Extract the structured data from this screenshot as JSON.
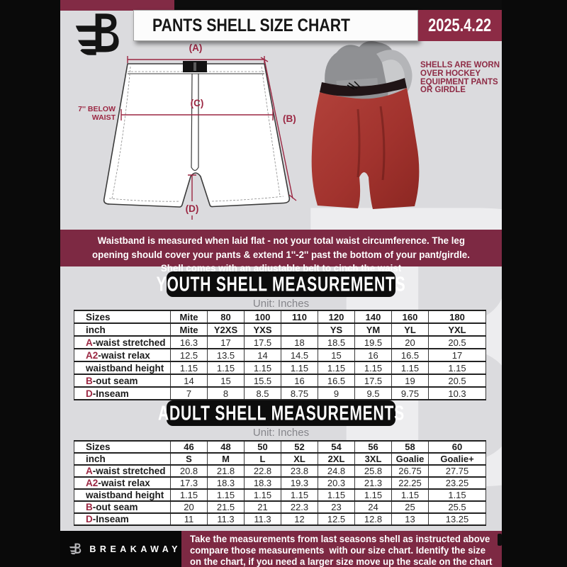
{
  "header": {
    "title": "PANTS SHELL SIZE CHART",
    "date": "2025.4.22"
  },
  "diagram": {
    "label_a": "(A)",
    "label_b": "(B)",
    "label_c": "(C)",
    "label_d": "(D)",
    "below_waist": "7'' BELOW WAIST",
    "caption_lines": [
      "SHELLS ARE WORN",
      "OVER HOCKEY",
      "EQUIPMENT PANTS",
      "OR GIRDLE"
    ]
  },
  "notice": {
    "lines": [
      "Waistband is measured when laid flat - not your total waist circumference. The leg",
      "opening should cover your pants & extend 1''-2'' past the bottom of your pant/girdle.",
      "Shell comes with an adjustable belt to cinch the waist"
    ]
  },
  "youth": {
    "title": "YOUTH SHELL MEASUREMENTS",
    "unit": "Unit: Inches",
    "table": {
      "rows": [
        {
          "header": true,
          "label": "Sizes",
          "values": [
            "Mite",
            "80",
            "100",
            "110",
            "120",
            "140",
            "160",
            "180"
          ]
        },
        {
          "header": true,
          "label": "inch",
          "values": [
            "Mite",
            "Y2XS",
            "YXS",
            "",
            "YS",
            "YM",
            "YL",
            "YXL"
          ]
        },
        {
          "prefix": "A",
          "label": "-waist stretched",
          "values": [
            "16.3",
            "17",
            "17.5",
            "18",
            "18.5",
            "19.5",
            "20",
            "20.5"
          ]
        },
        {
          "prefix": "A2",
          "label": "-waist relax",
          "values": [
            "12.5",
            "13.5",
            "14",
            "14.5",
            "15",
            "16",
            "16.5",
            "17"
          ]
        },
        {
          "label": "waistband height",
          "values": [
            "1.15",
            "1.15",
            "1.15",
            "1.15",
            "1.15",
            "1.15",
            "1.15",
            "1.15"
          ]
        },
        {
          "prefix": "B",
          "label": "-out seam",
          "values": [
            "14",
            "15",
            "15.5",
            "16",
            "16.5",
            "17.5",
            "19",
            "20.5"
          ]
        },
        {
          "prefix": "D",
          "label": "-Inseam",
          "values": [
            "7",
            "8",
            "8.5",
            "8.75",
            "9",
            "9.5",
            "9.75",
            "10.3"
          ]
        }
      ]
    }
  },
  "adult": {
    "title": "ADULT SHELL MEASUREMENTS",
    "unit": "Unit: Inches",
    "table": {
      "rows": [
        {
          "header": true,
          "label": "Sizes",
          "values": [
            "46",
            "48",
            "50",
            "52",
            "54",
            "56",
            "58",
            "60"
          ]
        },
        {
          "header": true,
          "label": "inch",
          "values": [
            "S",
            "M",
            "L",
            "XL",
            "2XL",
            "3XL",
            "Goalie",
            "Goalie+"
          ]
        },
        {
          "prefix": "A",
          "label": "-waist stretched",
          "values": [
            "20.8",
            "21.8",
            "22.8",
            "23.8",
            "24.8",
            "25.8",
            "26.75",
            "27.75"
          ]
        },
        {
          "prefix": "A2",
          "label": "-waist relax",
          "values": [
            "17.3",
            "18.3",
            "18.3",
            "19.3",
            "20.3",
            "21.3",
            "22.25",
            "23.25"
          ]
        },
        {
          "label": "waistband height",
          "values": [
            "1.15",
            "1.15",
            "1.15",
            "1.15",
            "1.15",
            "1.15",
            "1.15",
            "1.15"
          ]
        },
        {
          "prefix": "B",
          "label": "-out seam",
          "values": [
            "20",
            "21.5",
            "21",
            "22.3",
            "23",
            "24",
            "25",
            "25.5"
          ]
        },
        {
          "prefix": "D",
          "label": "-Inseam",
          "values": [
            "11",
            "11.3",
            "11.3",
            "12",
            "12.5",
            "12.8",
            "13",
            "13.25"
          ]
        }
      ]
    }
  },
  "footer": {
    "brand": "BREAKAWAY",
    "lines": [
      "Take the measurements from last seasons shell as instructed above",
      "compare those measurements  with our size chart. Identify the size",
      "on the chart, if you need a larger size move up the scale on the chart"
    ]
  },
  "watermark": "B",
  "colors": {
    "maroon_banner": "#7d2943",
    "maroon_accent": "#8c2b45",
    "prefix_maroon": "#9b2742",
    "shell_red": "#a2332e",
    "page_bg": "#dbdbde",
    "header_black": "#0d0d0d"
  }
}
